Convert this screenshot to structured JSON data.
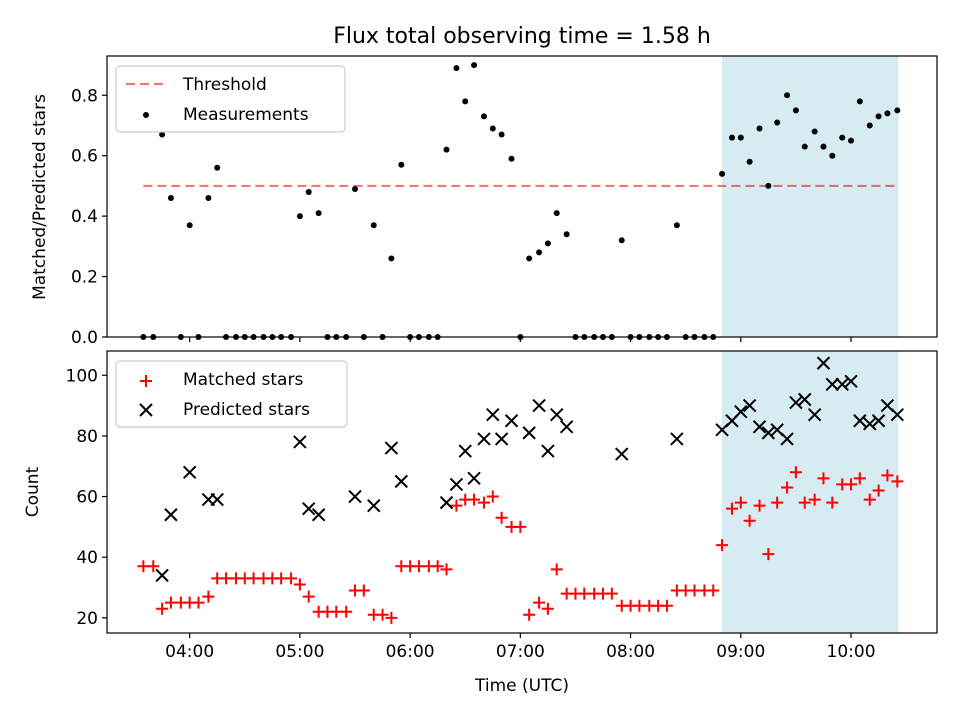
{
  "chart_data": [
    {
      "type": "scatter",
      "title": "Flux total observing time = 1.58 h",
      "ylabel": "Matched/Predicted stars",
      "xlabel": "",
      "ylim": [
        0,
        0.93
      ],
      "yticks": [
        "0.0",
        "0.2",
        "0.4",
        "0.6",
        "0.8"
      ],
      "xlim_hours": [
        3.25,
        10.78
      ],
      "legend_location": "upper-left",
      "shaded_region": {
        "x_start_hours": 8.83,
        "x_end_hours": 10.43,
        "color": "#add8e6"
      },
      "threshold": {
        "name": "Threshold",
        "y": 0.5,
        "x_start_hours": 3.58,
        "x_end_hours": 10.43,
        "color": "#ff0000",
        "style": "dashed"
      },
      "series": [
        {
          "name": "Measurements",
          "marker": "dot",
          "color": "#000000",
          "x_hours": [
            3.58,
            3.67,
            3.75,
            3.83,
            3.92,
            4.0,
            4.08,
            4.17,
            4.25,
            4.33,
            4.42,
            4.5,
            4.58,
            4.67,
            4.75,
            4.83,
            4.92,
            5.0,
            5.08,
            5.17,
            5.25,
            5.33,
            5.42,
            5.5,
            5.58,
            5.67,
            5.75,
            5.83,
            5.92,
            6.0,
            6.08,
            6.17,
            6.25,
            6.33,
            6.42,
            6.5,
            6.58,
            6.67,
            6.75,
            6.83,
            6.92,
            7.0,
            7.08,
            7.17,
            7.25,
            7.33,
            7.42,
            7.5,
            7.58,
            7.67,
            7.75,
            7.83,
            7.92,
            8.0,
            8.08,
            8.17,
            8.25,
            8.33,
            8.42,
            8.5,
            8.58,
            8.67,
            8.75,
            8.83,
            8.92,
            9.0,
            9.08,
            9.17,
            9.25,
            9.33,
            9.42,
            9.5,
            9.58,
            9.67,
            9.75,
            9.83,
            9.92,
            10.0,
            10.08,
            10.17,
            10.25,
            10.33,
            10.42
          ],
          "values": [
            0,
            0,
            0.67,
            0.46,
            0,
            0.37,
            0,
            0.46,
            0.56,
            0,
            0,
            0,
            0,
            0,
            0,
            0,
            0,
            0.4,
            0.48,
            0.41,
            0,
            0,
            0,
            0.49,
            0,
            0.37,
            0,
            0.26,
            0.57,
            0,
            0,
            0,
            0,
            0.62,
            0.89,
            0.78,
            0.9,
            0.73,
            0.69,
            0.67,
            0.59,
            0,
            0.26,
            0.28,
            0.31,
            0.41,
            0.34,
            0,
            0,
            0,
            0,
            0,
            0.32,
            0,
            0,
            0,
            0,
            0,
            0.37,
            0,
            0,
            0,
            0,
            0.54,
            0.66,
            0.66,
            0.58,
            0.69,
            0.5,
            0.71,
            0.8,
            0.75,
            0.63,
            0.68,
            0.63,
            0.6,
            0.66,
            0.65,
            0.78,
            0.7,
            0.73,
            0.74,
            0.75
          ]
        }
      ]
    },
    {
      "type": "scatter",
      "title": "",
      "ylabel": "Count",
      "xlabel": "Time (UTC)",
      "ylim": [
        15,
        108
      ],
      "yticks": [
        "20",
        "40",
        "60",
        "80",
        "100"
      ],
      "xlim_hours": [
        3.25,
        10.78
      ],
      "xtick_hours": [
        4,
        5,
        6,
        7,
        8,
        9,
        10
      ],
      "xtick_labels": [
        "04:00",
        "05:00",
        "06:00",
        "07:00",
        "08:00",
        "09:00",
        "10:00"
      ],
      "legend_location": "upper-left",
      "shaded_region": {
        "x_start_hours": 8.83,
        "x_end_hours": 10.43,
        "color": "#add8e6"
      },
      "series": [
        {
          "name": "Matched stars",
          "marker": "plus",
          "color": "#ff0000",
          "x_hours": [
            3.58,
            3.67,
            3.75,
            3.83,
            3.92,
            4.0,
            4.08,
            4.17,
            4.25,
            4.33,
            4.42,
            4.5,
            4.58,
            4.67,
            4.75,
            4.83,
            4.92,
            5.0,
            5.08,
            5.17,
            5.25,
            5.33,
            5.42,
            5.5,
            5.58,
            5.67,
            5.75,
            5.83,
            5.92,
            6.0,
            6.08,
            6.17,
            6.25,
            6.33,
            6.42,
            6.5,
            6.58,
            6.67,
            6.75,
            6.83,
            6.92,
            7.0,
            7.08,
            7.17,
            7.25,
            7.33,
            7.42,
            7.5,
            7.58,
            7.67,
            7.75,
            7.83,
            7.92,
            8.0,
            8.08,
            8.17,
            8.25,
            8.33,
            8.42,
            8.5,
            8.58,
            8.67,
            8.75,
            8.83,
            8.92,
            9.0,
            9.08,
            9.17,
            9.25,
            9.33,
            9.42,
            9.5,
            9.58,
            9.67,
            9.75,
            9.83,
            9.92,
            10.0,
            10.08,
            10.17,
            10.25,
            10.33,
            10.42
          ],
          "values": [
            37,
            37,
            23,
            25,
            25,
            25,
            25,
            27,
            33,
            33,
            33,
            33,
            33,
            33,
            33,
            33,
            33,
            31,
            27,
            22,
            22,
            22,
            22,
            29,
            29,
            21,
            21,
            20,
            37,
            37,
            37,
            37,
            37,
            36,
            57,
            59,
            59,
            58,
            60,
            53,
            50,
            50,
            21,
            25,
            23,
            36,
            28,
            28,
            28,
            28,
            28,
            28,
            24,
            24,
            24,
            24,
            24,
            24,
            29,
            29,
            29,
            29,
            29,
            44,
            56,
            58,
            52,
            57,
            41,
            58,
            63,
            68,
            58,
            59,
            66,
            58,
            64,
            64,
            66,
            59,
            62,
            67,
            65
          ]
        },
        {
          "name": "Predicted stars",
          "marker": "x",
          "color": "#000000",
          "x_hours": [
            3.75,
            3.83,
            4.0,
            4.17,
            4.25,
            5.0,
            5.08,
            5.17,
            5.5,
            5.67,
            5.83,
            5.92,
            6.33,
            6.42,
            6.5,
            6.58,
            6.67,
            6.75,
            6.83,
            6.92,
            7.08,
            7.17,
            7.25,
            7.33,
            7.42,
            7.92,
            8.42,
            8.83,
            8.92,
            9.0,
            9.08,
            9.17,
            9.25,
            9.33,
            9.42,
            9.5,
            9.58,
            9.67,
            9.75,
            9.83,
            9.92,
            10.0,
            10.08,
            10.17,
            10.25,
            10.33,
            10.42
          ],
          "values": [
            34,
            54,
            68,
            59,
            59,
            78,
            56,
            54,
            60,
            57,
            76,
            65,
            58,
            64,
            75,
            66,
            79,
            87,
            79,
            85,
            81,
            90,
            75,
            87,
            83,
            74,
            79,
            82,
            85,
            88,
            90,
            83,
            81,
            82,
            79,
            91,
            92,
            87,
            104,
            97,
            97,
            98,
            85,
            84,
            85,
            90,
            87
          ]
        }
      ]
    }
  ]
}
